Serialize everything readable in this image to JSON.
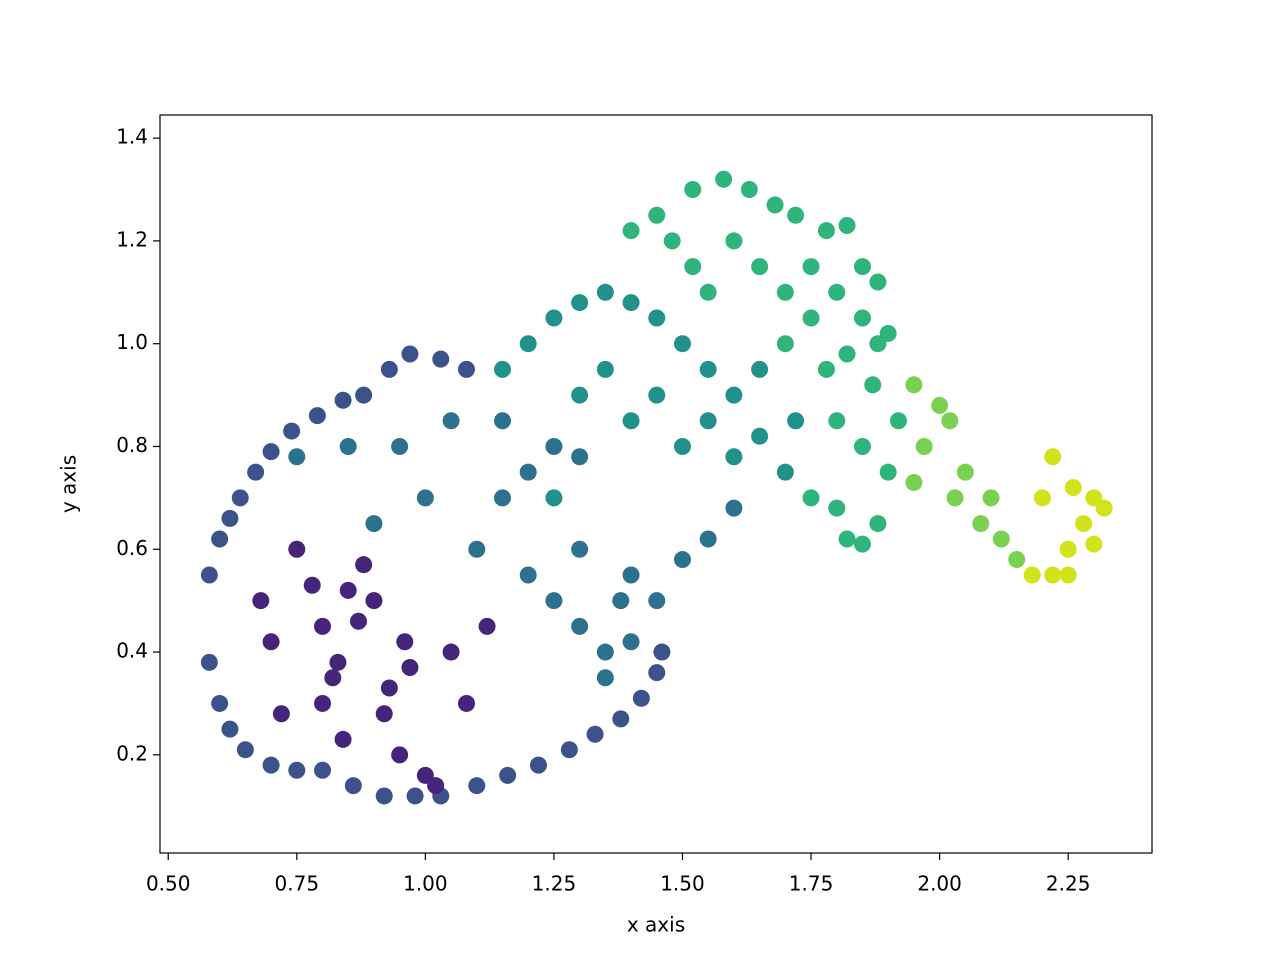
{
  "chart_data": {
    "type": "scatter",
    "xlabel": "x axis",
    "ylabel": "y axis",
    "xlim": [
      0.484,
      2.413
    ],
    "ylim": [
      0.009,
      1.445
    ],
    "xticks": [
      {
        "value": 0.5,
        "label": "0.50"
      },
      {
        "value": 0.75,
        "label": "0.75"
      },
      {
        "value": 1.0,
        "label": "1.00"
      },
      {
        "value": 1.25,
        "label": "1.25"
      },
      {
        "value": 1.5,
        "label": "1.50"
      },
      {
        "value": 1.75,
        "label": "1.75"
      },
      {
        "value": 2.0,
        "label": "2.00"
      },
      {
        "value": 2.25,
        "label": "2.25"
      }
    ],
    "yticks": [
      0.2,
      0.4,
      0.6,
      0.8,
      {
        "value": 1.0,
        "label": "1.0"
      },
      1.2,
      1.4
    ],
    "grid": false,
    "series": [
      {
        "color": "#3b528b",
        "x": [
          0.58,
          0.58,
          0.6,
          0.62,
          0.64,
          0.67,
          0.7,
          0.74,
          0.79,
          0.84,
          0.88,
          0.93,
          0.97,
          1.03,
          1.08,
          0.6,
          0.62,
          0.65,
          0.7,
          0.75,
          0.8,
          0.86,
          0.92,
          0.98,
          1.03,
          1.1,
          1.16,
          1.22,
          1.28,
          1.33,
          1.38,
          1.42,
          1.45,
          1.46
        ],
        "values": [
          0.38,
          0.55,
          0.62,
          0.66,
          0.7,
          0.75,
          0.79,
          0.83,
          0.86,
          0.89,
          0.9,
          0.95,
          0.98,
          0.97,
          0.95,
          0.3,
          0.25,
          0.21,
          0.18,
          0.17,
          0.17,
          0.14,
          0.12,
          0.12,
          0.12,
          0.14,
          0.16,
          0.18,
          0.21,
          0.24,
          0.27,
          0.31,
          0.36,
          0.4
        ]
      },
      {
        "color": "#46247a",
        "x": [
          0.8,
          0.82,
          0.83,
          0.85,
          0.88,
          0.9,
          0.92,
          0.95,
          0.96,
          0.97,
          1.0,
          1.02,
          0.8,
          0.78,
          0.87,
          0.93,
          1.05,
          1.08,
          1.12,
          0.75,
          0.7,
          0.68,
          0.72,
          0.84
        ],
        "values": [
          0.45,
          0.35,
          0.38,
          0.52,
          0.57,
          0.5,
          0.28,
          0.2,
          0.42,
          0.37,
          0.16,
          0.14,
          0.3,
          0.53,
          0.46,
          0.33,
          0.4,
          0.3,
          0.45,
          0.6,
          0.42,
          0.5,
          0.28,
          0.23
        ]
      },
      {
        "color": "#2c718e",
        "x": [
          1.1,
          1.15,
          1.2,
          1.25,
          1.3,
          1.2,
          1.25,
          1.3,
          1.35,
          1.38,
          1.4,
          1.3,
          1.15,
          1.05,
          0.95,
          0.85,
          0.75,
          1.0,
          0.9,
          1.35,
          1.4,
          1.45,
          1.5,
          1.55,
          1.6
        ],
        "values": [
          0.6,
          0.7,
          0.75,
          0.8,
          0.78,
          0.55,
          0.5,
          0.45,
          0.4,
          0.5,
          0.55,
          0.6,
          0.85,
          0.85,
          0.8,
          0.8,
          0.78,
          0.7,
          0.65,
          0.35,
          0.42,
          0.5,
          0.58,
          0.62,
          0.68
        ]
      },
      {
        "color": "#21918c",
        "x": [
          1.15,
          1.2,
          1.25,
          1.3,
          1.35,
          1.4,
          1.45,
          1.5,
          1.55,
          1.45,
          1.4,
          1.5,
          1.55,
          1.6,
          1.65,
          1.6,
          1.65,
          1.7,
          1.72,
          1.35,
          1.3,
          1.25
        ],
        "values": [
          0.95,
          1.0,
          1.05,
          1.08,
          1.1,
          1.08,
          1.05,
          1.0,
          0.95,
          0.9,
          0.85,
          0.8,
          0.85,
          0.9,
          0.95,
          0.78,
          0.82,
          0.75,
          0.85,
          0.95,
          0.9,
          0.7
        ]
      },
      {
        "color": "#2fb47c",
        "x": [
          1.75,
          1.8,
          1.82,
          1.85,
          1.88,
          1.9,
          1.85,
          1.8,
          1.78,
          1.82,
          1.75,
          1.7,
          1.87,
          1.92,
          1.55,
          1.52,
          1.48,
          1.45,
          1.4,
          1.52,
          1.58,
          1.63,
          1.68,
          1.72,
          1.78,
          1.82,
          1.6,
          1.65,
          1.7,
          1.75,
          1.8,
          1.85,
          1.88,
          1.9,
          1.85,
          1.88
        ],
        "values": [
          0.7,
          0.68,
          0.62,
          0.61,
          0.65,
          0.75,
          0.8,
          0.85,
          0.95,
          0.98,
          1.05,
          1.0,
          0.92,
          0.85,
          1.1,
          1.15,
          1.2,
          1.25,
          1.22,
          1.3,
          1.32,
          1.3,
          1.27,
          1.25,
          1.22,
          1.23,
          1.2,
          1.15,
          1.1,
          1.15,
          1.1,
          1.05,
          1.0,
          1.02,
          1.15,
          1.12
        ]
      },
      {
        "color": "#7ad151",
        "x": [
          1.95,
          2.0,
          2.02,
          1.97,
          2.05,
          2.1,
          2.08,
          2.12,
          2.15,
          2.03,
          1.95
        ],
        "values": [
          0.92,
          0.88,
          0.85,
          0.8,
          0.75,
          0.7,
          0.65,
          0.62,
          0.58,
          0.7,
          0.73
        ]
      },
      {
        "color": "#d2e21b",
        "x": [
          2.18,
          2.22,
          2.25,
          2.28,
          2.3,
          2.32,
          2.26,
          2.22,
          2.2,
          2.25,
          2.3
        ],
        "values": [
          0.55,
          0.55,
          0.6,
          0.65,
          0.7,
          0.68,
          0.72,
          0.78,
          0.7,
          0.55,
          0.61
        ]
      }
    ]
  }
}
